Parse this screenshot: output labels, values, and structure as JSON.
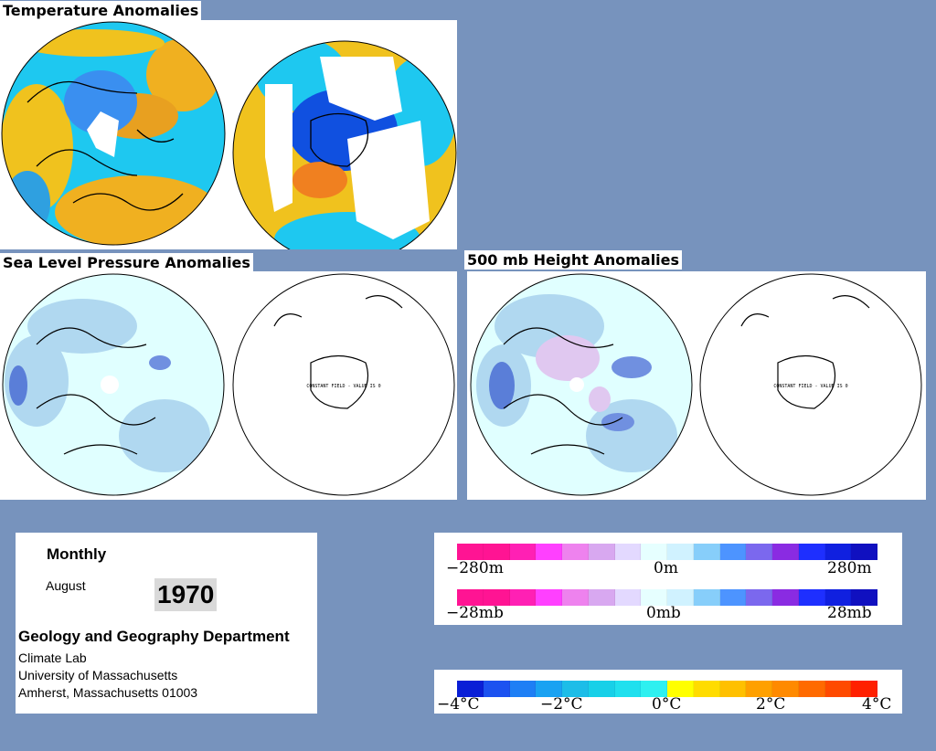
{
  "titles": {
    "temperature": "Temperature Anomalies",
    "slp": "Sea Level Pressure Anomalies",
    "height500": "500 mb Height Anomalies"
  },
  "maps": {
    "constant_field_note": "CONSTANT FIELD - VALUE IS 0"
  },
  "info": {
    "period": "Monthly",
    "month": "August",
    "year": "1970",
    "department": "Geology and Geography Department",
    "lab": "Climate Lab",
    "university": "University of Massachusetts",
    "address": "Amherst, Massachusetts 01003"
  },
  "legend_height": {
    "min": "−280m",
    "mid": "0m",
    "max": "280m",
    "colors": [
      "#ff1493",
      "#ff1493",
      "#ff20b4",
      "#ff40ff",
      "#ee82ee",
      "#d8a8f0",
      "#e3d9ff",
      "#e6ffff",
      "#d0f2ff",
      "#87cefa",
      "#4d94ff",
      "#7b68ee",
      "#8a2be2",
      "#1e2fff",
      "#1020e0",
      "#1010c0"
    ]
  },
  "legend_pressure": {
    "min": "−28mb",
    "mid": "0mb",
    "max": "28mb",
    "colors": [
      "#ff1493",
      "#ff1493",
      "#ff20b4",
      "#ff40ff",
      "#ee82ee",
      "#d8a8f0",
      "#e3d9ff",
      "#e6ffff",
      "#d0f2ff",
      "#87cefa",
      "#4d94ff",
      "#7b68ee",
      "#8a2be2",
      "#1e2fff",
      "#1020e0",
      "#1010c0"
    ]
  },
  "legend_temperature": {
    "labels": [
      "−4°C",
      "−2°C",
      "0°C",
      "2°C",
      "4°C"
    ],
    "colors": [
      "#0a1fd6",
      "#1c52f0",
      "#1e7ff5",
      "#1aa2f2",
      "#1dbde8",
      "#18d0e8",
      "#20e0ee",
      "#2ef0f0",
      "#ffff00",
      "#ffdc00",
      "#ffc000",
      "#ffa000",
      "#ff8a00",
      "#ff6a00",
      "#ff4a00",
      "#ff2000"
    ]
  }
}
